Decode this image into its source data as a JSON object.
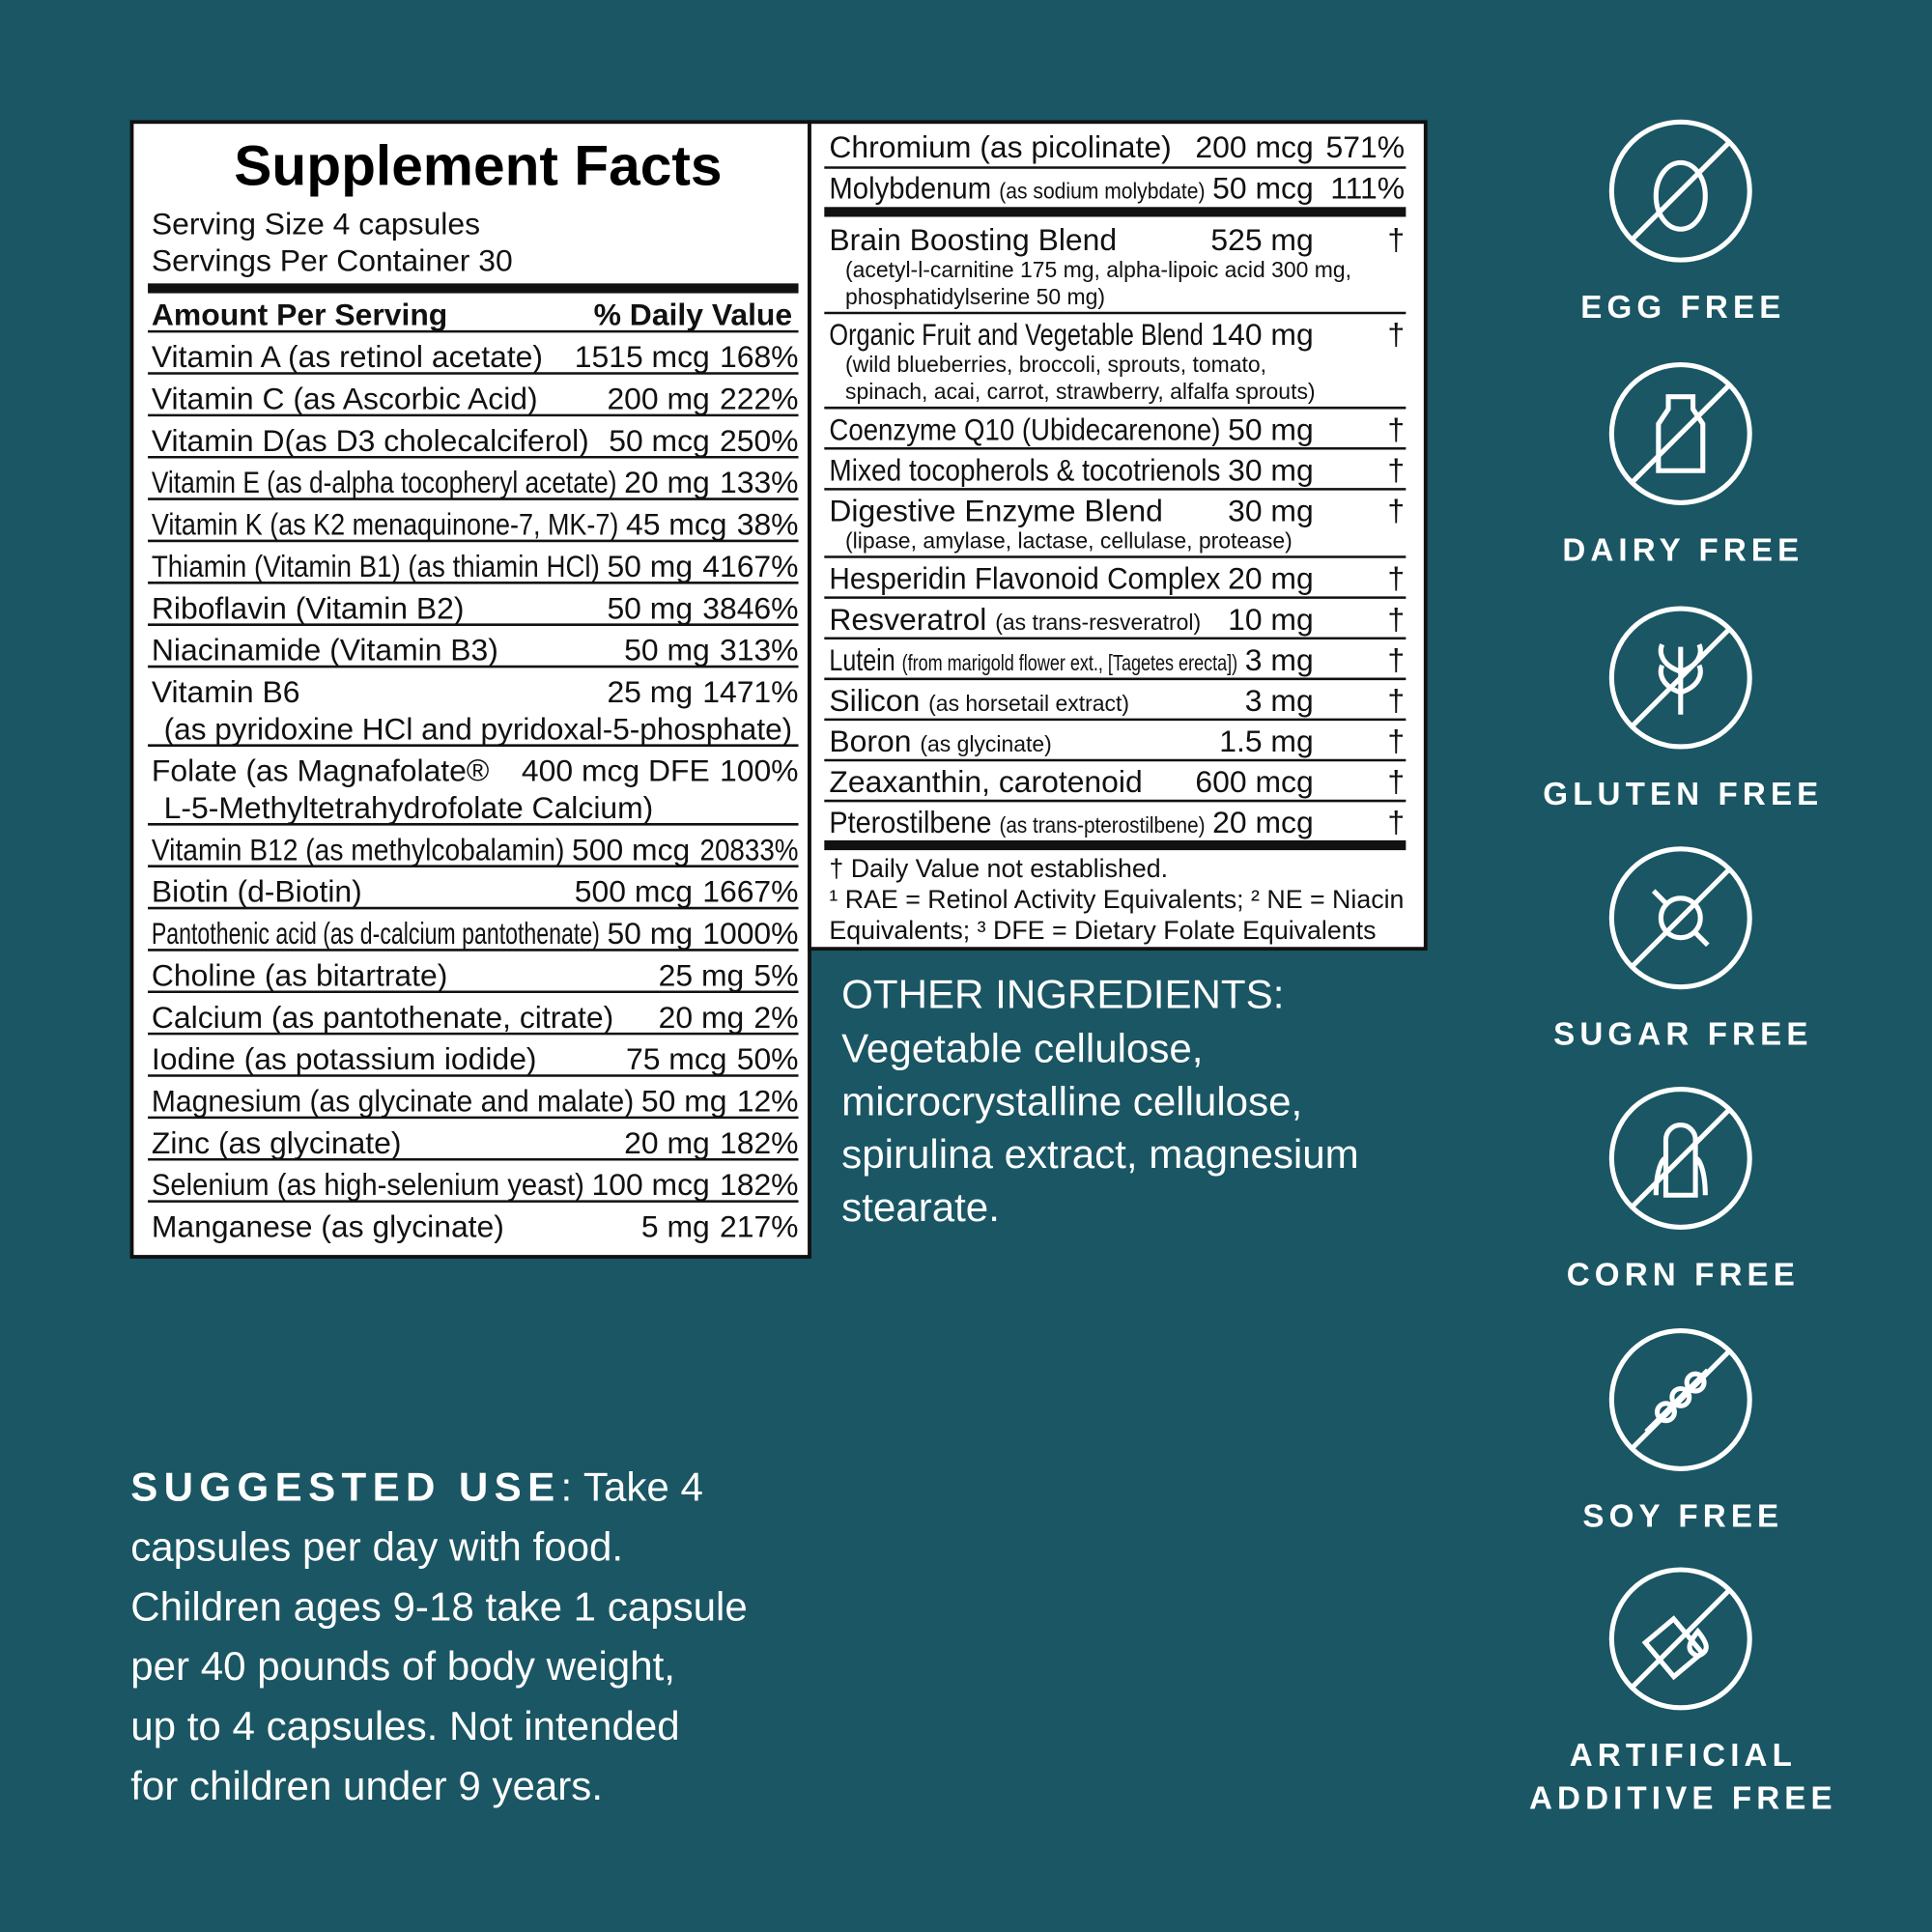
{
  "facts": {
    "title": "Supplement Facts",
    "serving_size": "Serving Size 4 capsules",
    "servings_per_container": "Servings Per Container 30",
    "amount_header": "Amount Per Serving",
    "dv_header": "% Daily Value",
    "left_rows": [
      {
        "name": "Vitamin A (as retinol acetate)",
        "amount": "1515 mcg",
        "dv": "168%"
      },
      {
        "name": "Vitamin C (as Ascorbic Acid)",
        "amount": "200 mg",
        "dv": "222%"
      },
      {
        "name": "Vitamin D(as D3 cholecalciferol)",
        "amount": "50 mcg",
        "dv": "250%"
      },
      {
        "name": "Vitamin E (as d-alpha tocopheryl acetate)",
        "amount": "20 mg",
        "dv": "133%"
      },
      {
        "name": "Vitamin K (as K2 menaquinone-7, MK-7)",
        "amount": "45 mcg",
        "dv": "38%"
      },
      {
        "name": "Thiamin (Vitamin B1) (as thiamin HCl)",
        "amount": "50 mg",
        "dv": "4167%"
      },
      {
        "name": "Riboflavin (Vitamin B2)",
        "amount": "50 mg",
        "dv": "3846%"
      },
      {
        "name": "Niacinamide (Vitamin B3)",
        "amount": "50 mg",
        "dv": "313%"
      },
      {
        "name": "Vitamin B6",
        "amount": "25 mg",
        "dv": "1471%",
        "note": "(as pyridoxine HCl and pyridoxal-5-phosphate)"
      },
      {
        "name": "Folate (as Magnafolate®",
        "amount": "400 mcg DFE",
        "dv": "100%",
        "note": "L-5-Methyltetrahydrofolate Calcium)"
      },
      {
        "name": "Vitamin B12 (as methylcobalamin)",
        "amount": "500 mcg",
        "dv": "20833%"
      },
      {
        "name": "Biotin (d-Biotin)",
        "amount": "500 mcg",
        "dv": "1667%"
      },
      {
        "name": "Pantothenic acid (as d-calcium pantothenate)",
        "amount": "50 mg",
        "dv": "1000%"
      },
      {
        "name": "Choline (as bitartrate)",
        "amount": "25 mg",
        "dv": "5%"
      },
      {
        "name": "Calcium (as pantothenate, citrate)",
        "amount": "20 mg",
        "dv": "2%"
      },
      {
        "name": "Iodine (as potassium iodide)",
        "amount": "75 mcg",
        "dv": "50%"
      },
      {
        "name": "Magnesium (as glycinate and malate)",
        "amount": "50 mg",
        "dv": "12%"
      },
      {
        "name": "Zinc (as glycinate)",
        "amount": "20 mg",
        "dv": "182%"
      },
      {
        "name": "Selenium (as high-selenium yeast)",
        "amount": "100 mcg",
        "dv": "182%"
      },
      {
        "name": "Manganese (as glycinate)",
        "amount": "5 mg",
        "dv": "217%"
      }
    ],
    "right_rows": [
      {
        "name": "Chromium (as picolinate)",
        "amount": "200 mcg",
        "dv": "571%"
      },
      {
        "name": "Molybdenum",
        "qualifier": "(as sodium molybdate)",
        "amount": "50 mcg",
        "dv": "111%"
      },
      {
        "name": "Brain Boosting Blend",
        "amount": "525 mg",
        "dv": "†",
        "note": [
          "(acetyl-l-carnitine 175 mg, alpha-lipoic acid 300 mg,",
          "phosphatidylserine 50 mg)"
        ]
      },
      {
        "name": "Organic Fruit and Vegetable Blend",
        "amount": "140 mg",
        "dv": "†",
        "note": [
          "(wild blueberries, broccoli, sprouts, tomato,",
          "spinach, acai, carrot, strawberry, alfalfa sprouts)"
        ]
      },
      {
        "name": "Coenzyme Q10 (Ubidecarenone)",
        "amount": "50 mg",
        "dv": "†"
      },
      {
        "name": "Mixed tocopherols & tocotrienols",
        "amount": "30 mg",
        "dv": "†"
      },
      {
        "name": "Digestive Enzyme Blend",
        "amount": "30 mg",
        "dv": "†",
        "note": [
          "(lipase, amylase, lactase, cellulase, protease)"
        ]
      },
      {
        "name": "Hesperidin Flavonoid Complex",
        "amount": "20 mg",
        "dv": "†"
      },
      {
        "name": "Resveratrol",
        "qualifier": "(as trans-resveratrol)",
        "amount": "10 mg",
        "dv": "†"
      },
      {
        "name": "Lutein",
        "qualifier": "(from marigold flower ext., [Tagetes erecta])",
        "amount": "3 mg",
        "dv": "†"
      },
      {
        "name": "Silicon",
        "qualifier": "(as horsetail extract)",
        "amount": "3 mg",
        "dv": "†"
      },
      {
        "name": "Boron",
        "qualifier": "(as glycinate)",
        "amount": "1.5 mg",
        "dv": "†"
      },
      {
        "name": "Zeaxanthin, carotenoid",
        "amount": "600 mcg",
        "dv": "†"
      },
      {
        "name": "Pterostilbene",
        "qualifier": "(as trans-pterostilbene)",
        "amount": "20 mcg",
        "dv": "†"
      }
    ],
    "footnotes": [
      "† Daily Value not established.",
      "¹ RAE = Retinol Activity Equivalents; ² NE = Niacin",
      "Equivalents; ³ DFE = Dietary Folate Equivalents"
    ]
  },
  "other_ingredients": {
    "heading": "OTHER INGREDIENTS:",
    "lines": [
      "Vegetable cellulose,",
      "microcrystalline cellulose,",
      "spirulina extract, magnesium",
      "stearate."
    ]
  },
  "suggested_use": {
    "label": "SUGGESTED USE",
    "lines": [
      "Take 4",
      "capsules per day with food.",
      "Children ages 9-18 take 1 capsule",
      "per 40 pounds of body weight,",
      "up to 4 capsules. Not intended",
      "for children under 9 years."
    ]
  },
  "badges": [
    [
      "EGG FREE"
    ],
    [
      "DAIRY FREE"
    ],
    [
      "GLUTEN FREE"
    ],
    [
      "SUGAR FREE"
    ],
    [
      "CORN FREE"
    ],
    [
      "SOY FREE"
    ],
    [
      "ARTIFICIAL",
      "ADDITIVE FREE"
    ]
  ]
}
